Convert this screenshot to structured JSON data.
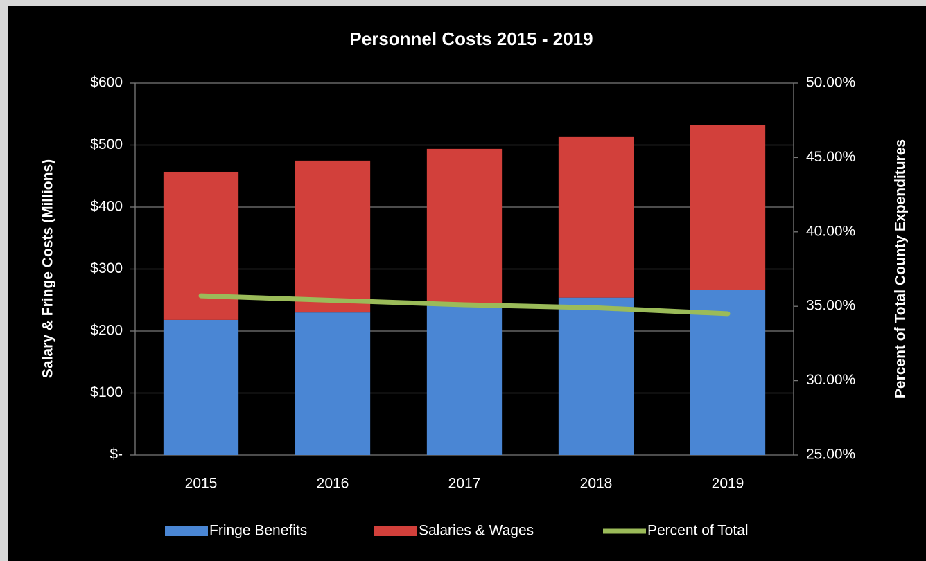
{
  "chart_data": {
    "type": "bar",
    "title": "Personnel Costs 2015 - 2019",
    "ylabel": "Salary & Fringe Costs (Millions)",
    "y2label": "Percent of Total County Expenditures",
    "categories": [
      "2015",
      "2016",
      "2017",
      "2018",
      "2019"
    ],
    "stacked": true,
    "series": [
      {
        "name": "Fringe Benefits",
        "color": "#4a86d4",
        "values": [
          218,
          230,
          242,
          254,
          266
        ]
      },
      {
        "name": "Salaries & Wages",
        "color": "#d2403b",
        "values": [
          239,
          245,
          252,
          259,
          266
        ]
      },
      {
        "name": "Percent of Total",
        "color": "#9bbb59",
        "type": "line",
        "axis": "y2",
        "values": [
          35.7,
          35.4,
          35.1,
          34.9,
          34.5
        ]
      }
    ],
    "ylim": [
      0,
      600
    ],
    "yticks": [
      {
        "value": 0,
        "label": "$-"
      },
      {
        "value": 100,
        "label": "$100"
      },
      {
        "value": 200,
        "label": "$200"
      },
      {
        "value": 300,
        "label": "$300"
      },
      {
        "value": 400,
        "label": "$400"
      },
      {
        "value": 500,
        "label": "$500"
      },
      {
        "value": 600,
        "label": "$600"
      }
    ],
    "y2lim": [
      25,
      50
    ],
    "y2ticks": [
      {
        "value": 25,
        "label": "25.00%"
      },
      {
        "value": 30,
        "label": "30.00%"
      },
      {
        "value": 35,
        "label": "35.00%"
      },
      {
        "value": 40,
        "label": "40.00%"
      },
      {
        "value": 45,
        "label": "45.00%"
      },
      {
        "value": 50,
        "label": "50.00%"
      }
    ],
    "grid": true,
    "legend": "bottom"
  }
}
